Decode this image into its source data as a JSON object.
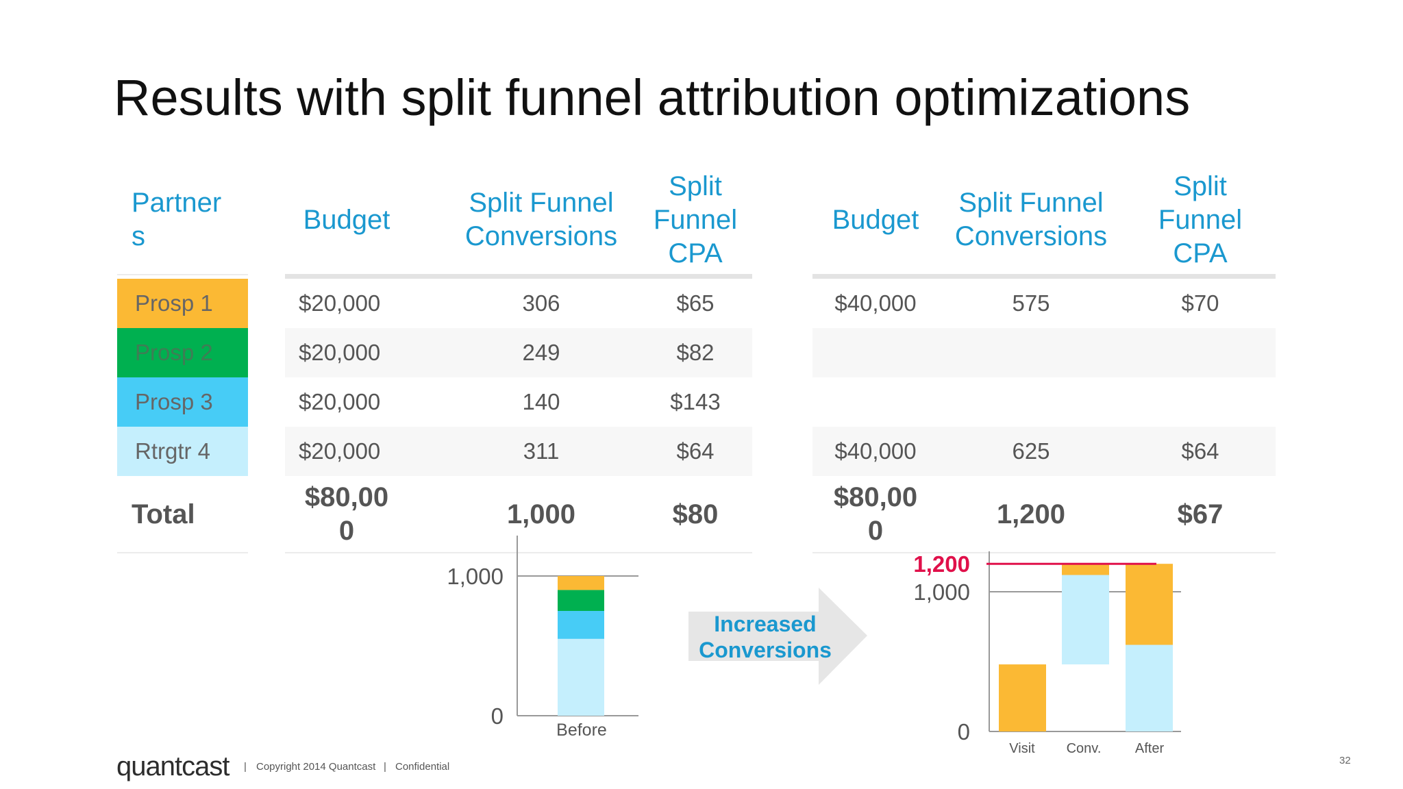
{
  "title": "Results with split funnel attribution optimizations",
  "colors": {
    "accent": "#1a98cf",
    "prosp1": "#fbb934",
    "prosp2": "#00b050",
    "prosp3": "#47ccf6",
    "rtrgtr4": "#c5effd",
    "target_line": "#e0104a"
  },
  "headers": {
    "partners": [
      "Partner",
      "s"
    ],
    "budget": "Budget",
    "conversions": [
      "Split Funnel",
      "Conversions"
    ],
    "cpa": [
      "Split",
      "Funnel",
      "CPA"
    ]
  },
  "partners": [
    "Prosp 1",
    "Prosp 2",
    "Prosp 3",
    "Rtrgtr 4"
  ],
  "total_label": "Total",
  "before": {
    "rows": [
      {
        "budget": "$20,000",
        "conversions": "306",
        "cpa": "$65"
      },
      {
        "budget": "$20,000",
        "conversions": "249",
        "cpa": "$82"
      },
      {
        "budget": "$20,000",
        "conversions": "140",
        "cpa": "$143"
      },
      {
        "budget": "$20,000",
        "conversions": "311",
        "cpa": "$64"
      }
    ],
    "total": {
      "budget": [
        "$80,00",
        "0"
      ],
      "conversions": "1,000",
      "cpa": "$80"
    }
  },
  "after": {
    "rows": [
      {
        "budget": "$40,000",
        "conversions": "575",
        "cpa": "$70"
      },
      {
        "budget": "",
        "conversions": "",
        "cpa": ""
      },
      {
        "budget": "",
        "conversions": "",
        "cpa": ""
      },
      {
        "budget": "$40,000",
        "conversions": "625",
        "cpa": "$64"
      }
    ],
    "total": {
      "budget": [
        "$80,00",
        "0"
      ],
      "conversions": "1,200",
      "cpa": "$67"
    }
  },
  "arrow_label": [
    "Increased",
    "Conversions"
  ],
  "chart_data": [
    {
      "type": "bar",
      "stacked": true,
      "categories": [
        "Before"
      ],
      "yticks": [
        "0",
        "1,000"
      ],
      "ylim": [
        0,
        1000
      ],
      "series": [
        {
          "values": [
            550
          ],
          "color": "#c5effd"
        },
        {
          "values": [
            200
          ],
          "color": "#47ccf6"
        },
        {
          "values": [
            150
          ],
          "color": "#00b050"
        },
        {
          "values": [
            100
          ],
          "color": "#fbb934"
        }
      ]
    },
    {
      "type": "bar",
      "waterfall": true,
      "categories": [
        "Visit",
        "Conv.",
        "After"
      ],
      "yticks": [
        "0",
        "1,000"
      ],
      "target_label": "1,200",
      "target_value": 1200,
      "ylim": [
        0,
        1200
      ],
      "bars": [
        {
          "category": "Visit",
          "segments": [
            {
              "from": 0,
              "to": 480,
              "color": "#fbb934"
            }
          ]
        },
        {
          "category": "Conv.",
          "segments": [
            {
              "from": 480,
              "to": 1120,
              "color": "#c5effd"
            },
            {
              "from": 1120,
              "to": 1200,
              "color": "#fbb934"
            }
          ]
        },
        {
          "category": "After",
          "segments": [
            {
              "from": 0,
              "to": 620,
              "color": "#c5effd"
            },
            {
              "from": 620,
              "to": 1200,
              "color": "#fbb934"
            }
          ]
        }
      ]
    }
  ],
  "footer": {
    "logo": "quantcast",
    "sep": "|",
    "copyright": "Copyright 2014 Quantcast",
    "confidential": "Confidential",
    "page": "32"
  }
}
